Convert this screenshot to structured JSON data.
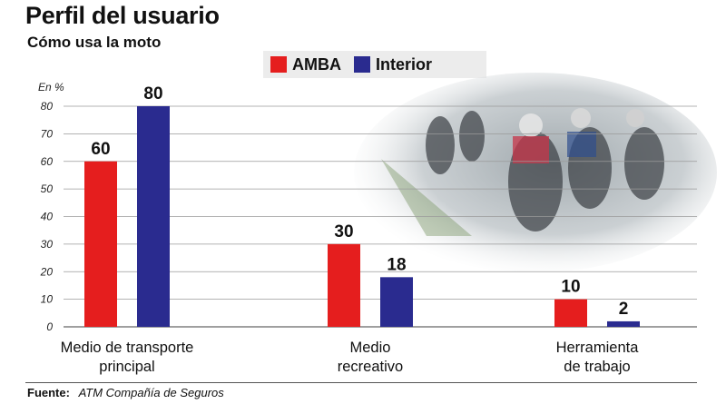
{
  "header": {
    "title": "Perfil del usuario",
    "subtitle": "Cómo usa la moto"
  },
  "legend": {
    "items": [
      {
        "label": "AMBA",
        "color": "#e51e1e"
      },
      {
        "label": "Interior",
        "color": "#2a2b8f"
      }
    ]
  },
  "footer": {
    "source_label": "Fuente:",
    "source_text": "ATM Compañía de Seguros"
  },
  "photo": {
    "icon": "motorcycle-riders-photo"
  },
  "chart_data": {
    "type": "bar",
    "title": "Perfil del usuario",
    "subtitle": "Cómo usa la moto",
    "unit": "En %",
    "categories": [
      [
        "Medio de transporte",
        "principal"
      ],
      [
        "Medio",
        "recreativo"
      ],
      [
        "Herramienta",
        "de trabajo"
      ]
    ],
    "series": [
      {
        "name": "AMBA",
        "color": "#e51e1e",
        "values": [
          60,
          30,
          10
        ]
      },
      {
        "name": "Interior",
        "color": "#2a2b8f",
        "values": [
          80,
          18,
          2
        ]
      }
    ],
    "ylim": [
      0,
      80
    ],
    "yticks": [
      0,
      10,
      20,
      30,
      40,
      50,
      60,
      70,
      80
    ],
    "grid": true,
    "legend_position": "top-center"
  }
}
